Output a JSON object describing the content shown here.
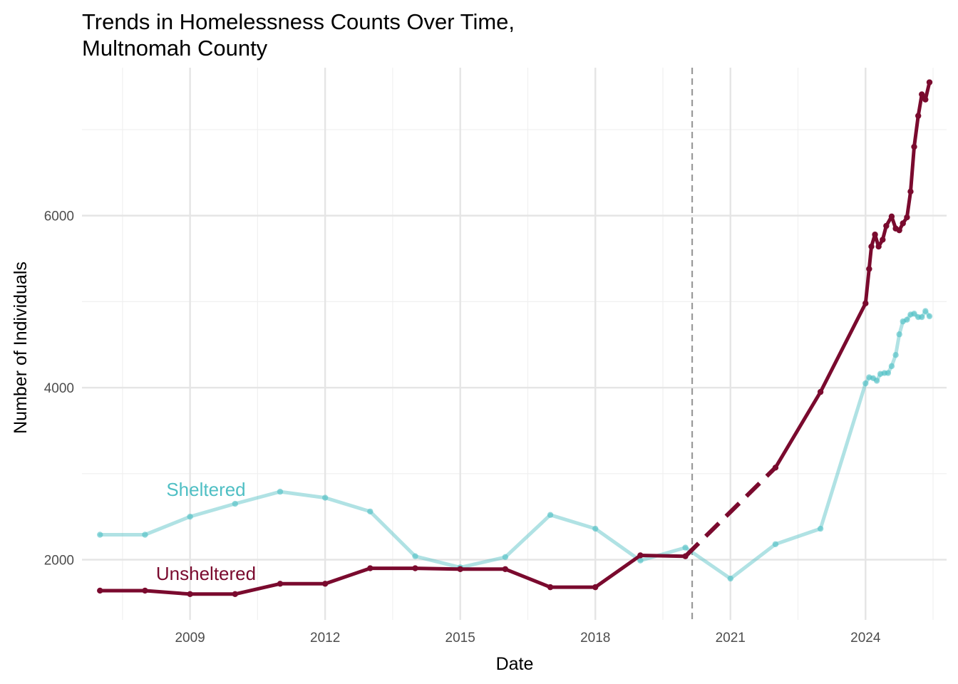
{
  "chart_data": {
    "type": "line",
    "title_line1": "Trends in Homelessness Counts Over Time,",
    "title_line2": "Multnomah County",
    "xlabel": "Date",
    "ylabel": "Number of Individuals",
    "x_ticks": [
      2009,
      2012,
      2015,
      2018,
      2021,
      2024
    ],
    "y_ticks": [
      2000,
      4000,
      6000
    ],
    "xlim": [
      2006.6,
      2025.8
    ],
    "ylim": [
      1300,
      7720
    ],
    "grid": true,
    "legend": "none",
    "reference_line_x": 2020.15,
    "series": [
      {
        "name": "Sheltered",
        "color": "#4fbfc4",
        "points": [
          [
            2007,
            2290
          ],
          [
            2008,
            2290
          ],
          [
            2009,
            2500
          ],
          [
            2010,
            2650
          ],
          [
            2011,
            2790
          ],
          [
            2012,
            2720
          ],
          [
            2013,
            2560
          ],
          [
            2014,
            2040
          ],
          [
            2015,
            1910
          ],
          [
            2016,
            2030
          ],
          [
            2017,
            2520
          ],
          [
            2018,
            2360
          ],
          [
            2019,
            1990
          ],
          [
            2020,
            2140
          ],
          [
            2021,
            1780
          ],
          [
            2022,
            2180
          ],
          [
            2023,
            2360
          ],
          [
            2024,
            4050
          ],
          [
            2024.08,
            4120
          ],
          [
            2024.17,
            4110
          ],
          [
            2024.25,
            4080
          ],
          [
            2024.33,
            4160
          ],
          [
            2024.42,
            4170
          ],
          [
            2024.5,
            4170
          ],
          [
            2024.58,
            4250
          ],
          [
            2024.67,
            4380
          ],
          [
            2024.75,
            4620
          ],
          [
            2024.83,
            4770
          ],
          [
            2024.92,
            4790
          ],
          [
            2025,
            4850
          ],
          [
            2025.08,
            4860
          ],
          [
            2025.17,
            4820
          ],
          [
            2025.25,
            4820
          ],
          [
            2025.33,
            4890
          ],
          [
            2025.42,
            4830
          ]
        ]
      },
      {
        "name": "Unsheltered",
        "color": "#7a0a2e",
        "points": [
          [
            2007,
            1640
          ],
          [
            2008,
            1640
          ],
          [
            2009,
            1600
          ],
          [
            2010,
            1600
          ],
          [
            2011,
            1720
          ],
          [
            2012,
            1720
          ],
          [
            2013,
            1900
          ],
          [
            2014,
            1900
          ],
          [
            2015,
            1890
          ],
          [
            2016,
            1890
          ],
          [
            2017,
            1680
          ],
          [
            2018,
            1680
          ],
          [
            2019,
            2050
          ],
          [
            2020,
            2040
          ],
          [
            2022,
            3070
          ],
          [
            2023,
            3950
          ],
          [
            2024,
            4980
          ],
          [
            2024.08,
            5380
          ],
          [
            2024.13,
            5640
          ],
          [
            2024.21,
            5780
          ],
          [
            2024.29,
            5640
          ],
          [
            2024.38,
            5720
          ],
          [
            2024.46,
            5880
          ],
          [
            2024.58,
            5990
          ],
          [
            2024.67,
            5850
          ],
          [
            2024.75,
            5830
          ],
          [
            2024.83,
            5910
          ],
          [
            2024.92,
            5980
          ],
          [
            2025,
            6280
          ],
          [
            2025.08,
            6800
          ],
          [
            2025.17,
            7160
          ],
          [
            2025.25,
            7410
          ],
          [
            2025.33,
            7350
          ],
          [
            2025.42,
            7550
          ]
        ],
        "dashed_segment": [
          [
            2020,
            2040
          ],
          [
            2022,
            3070
          ]
        ]
      }
    ]
  }
}
